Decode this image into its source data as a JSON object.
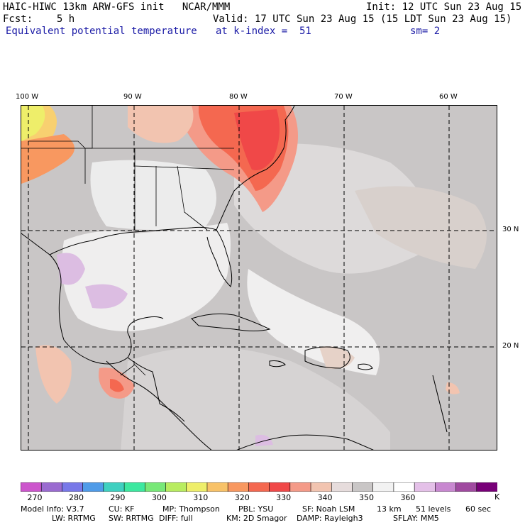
{
  "header": {
    "line1_left": "HAIC-HIWC 13km ARW-GFS init   NCAR/MMM",
    "line1_right": "Init: 12 UTC Sun 23 Aug 15",
    "line2_left": "Fcst:    5 h",
    "line2_right": "Valid: 17 UTC Sun 23 Aug 15 (15 LDT Sun 23 Aug 15)",
    "field_name": "Equivalent potential temperature",
    "level": "at k-index =  51",
    "smoothing": "sm= 2"
  },
  "map": {
    "lon_labels": [
      "100 W",
      "90 W",
      "80 W",
      "70 W",
      "60 W"
    ],
    "lat_labels": [
      "30 N",
      "20 N"
    ]
  },
  "colorbar": {
    "colors": [
      "#cc55cc",
      "#9a6bd0",
      "#7878e8",
      "#4f9be8",
      "#3fd0c0",
      "#3ce8a0",
      "#78e878",
      "#b8ec60",
      "#eeee6a",
      "#f8c268",
      "#f89860",
      "#f46850",
      "#f04848",
      "#f49a88",
      "#f2c4b0",
      "#e6dcdc",
      "#c9c6c6",
      "#f2f2f2",
      "#ffffff",
      "#e4c0e8",
      "#c888d0",
      "#a04aa0",
      "#780078"
    ],
    "labels": [
      "270",
      "280",
      "290",
      "300",
      "310",
      "320",
      "330",
      "340",
      "350",
      "360"
    ],
    "unit": "K"
  },
  "footer": {
    "line1": [
      "Model Info: V3.7",
      "CU: KF",
      "MP: Thompson",
      "PBL: YSU",
      "SF: Noah LSM",
      "13 km",
      "51 levels",
      "60 sec"
    ],
    "line2": [
      "LW: RRTMG",
      "SW: RRTMG",
      "DIFF: full",
      "KM: 2D Smagor",
      "DAMP: Rayleigh3",
      "SFLAY: MM5"
    ]
  }
}
